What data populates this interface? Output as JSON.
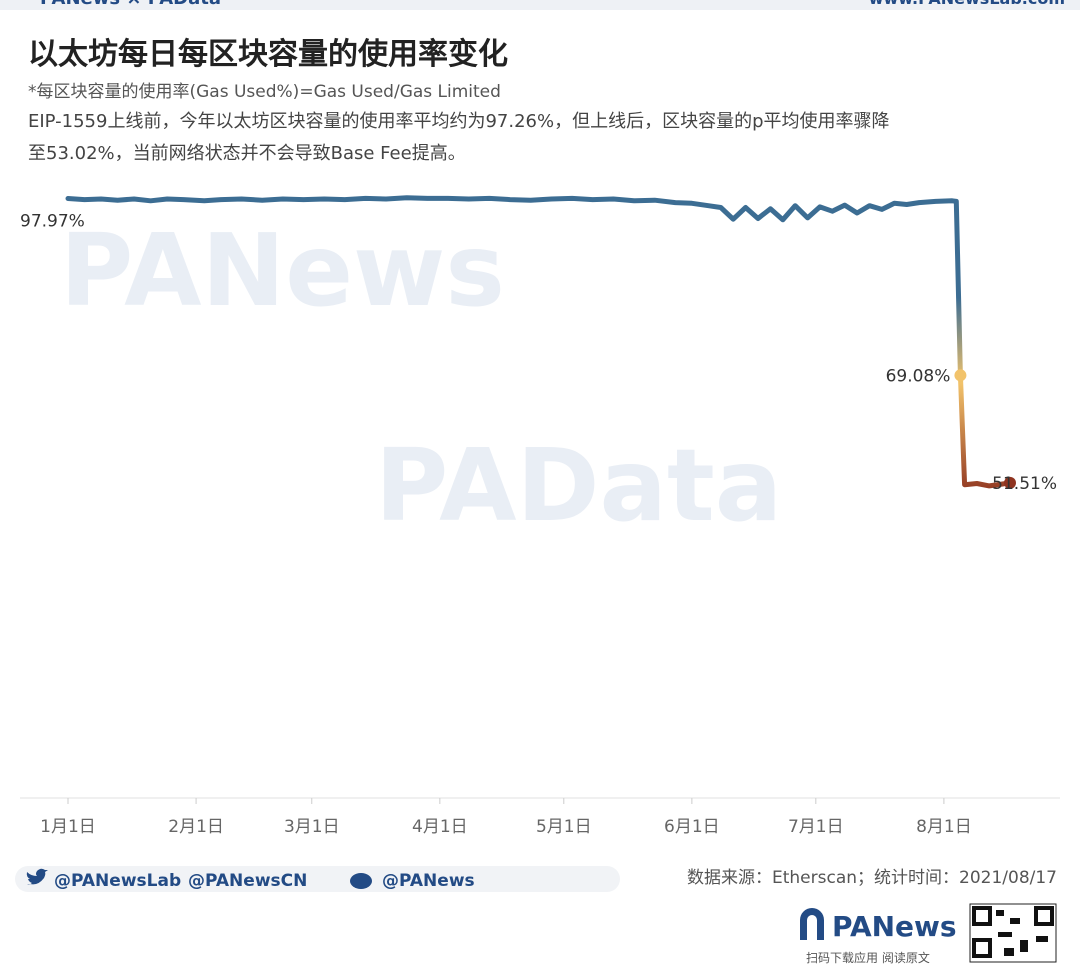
{
  "header": {
    "brand": "PANews × PAData",
    "site": "www.PANewsLab.com"
  },
  "chart_data": {
    "type": "line",
    "title": "以太坊每日每区块容量的使用率变化",
    "subtitle": "*每区块容量的使用率(Gas Used%)=Gas Used/Gas Limited",
    "description": [
      "EIP-1559上线前，今年以太坊区块容量的使用率平均约为97.26%，但上线后，区块容量的p平均使用率骤降",
      "至53.02%，当前网络状态并不会导致Base Fee提高。"
    ],
    "x": [
      "2021-01-01",
      "2021-01-05",
      "2021-01-09",
      "2021-01-13",
      "2021-01-17",
      "2021-01-21",
      "2021-01-25",
      "2021-01-29",
      "2021-02-03",
      "2021-02-07",
      "2021-02-12",
      "2021-02-17",
      "2021-02-22",
      "2021-02-27",
      "2021-03-04",
      "2021-03-09",
      "2021-03-14",
      "2021-03-19",
      "2021-03-24",
      "2021-03-29",
      "2021-04-03",
      "2021-04-08",
      "2021-04-13",
      "2021-04-18",
      "2021-04-23",
      "2021-04-28",
      "2021-05-03",
      "2021-05-08",
      "2021-05-13",
      "2021-05-18",
      "2021-05-23",
      "2021-05-28",
      "2021-06-01",
      "2021-06-05",
      "2021-06-08",
      "2021-06-11",
      "2021-06-14",
      "2021-06-17",
      "2021-06-20",
      "2021-06-23",
      "2021-06-26",
      "2021-06-29",
      "2021-07-02",
      "2021-07-05",
      "2021-07-08",
      "2021-07-11",
      "2021-07-14",
      "2021-07-17",
      "2021-07-20",
      "2021-07-23",
      "2021-07-26",
      "2021-07-30",
      "2021-08-03",
      "2021-08-04",
      "2021-08-05",
      "2021-08-06",
      "2021-08-09",
      "2021-08-12",
      "2021-08-15",
      "2021-08-17"
    ],
    "series": [
      {
        "color": "#3c6d93",
        "gradient": [
          "#3c6d93",
          "#f2c36b",
          "#8f3420"
        ],
        "values": [
          97.97,
          97.8,
          97.9,
          97.7,
          97.9,
          97.6,
          97.9,
          97.8,
          97.6,
          97.8,
          97.9,
          97.7,
          97.9,
          97.8,
          97.9,
          97.8,
          98.0,
          97.9,
          98.1,
          98.0,
          98.0,
          97.9,
          98.0,
          97.8,
          97.7,
          97.9,
          98.0,
          97.8,
          97.9,
          97.6,
          97.7,
          97.3,
          97.2,
          96.8,
          96.5,
          94.6,
          96.5,
          94.7,
          96.3,
          94.5,
          96.8,
          94.8,
          96.6,
          95.9,
          96.9,
          95.6,
          96.8,
          96.2,
          97.2,
          97.0,
          97.3,
          97.5,
          97.6,
          97.5,
          69.08,
          51.2,
          51.4,
          51.0,
          51.3,
          51.51
        ],
        "value_labels": [
          "97.97%",
          null,
          null,
          null,
          null,
          null,
          null,
          null,
          null,
          null,
          null,
          null,
          null,
          null,
          null,
          null,
          null,
          null,
          null,
          null,
          null,
          null,
          null,
          null,
          null,
          null,
          null,
          null,
          null,
          null,
          null,
          null,
          null,
          null,
          null,
          null,
          null,
          null,
          null,
          null,
          null,
          null,
          null,
          null,
          null,
          null,
          null,
          null,
          null,
          null,
          null,
          null,
          null,
          null,
          "69.08%",
          null,
          null,
          null,
          null,
          "51.51%"
        ]
      }
    ],
    "xlim": [
      "2021-01-01",
      "2021-08-17"
    ],
    "xticks": [
      {
        "value": "2021-01-01",
        "label": "1月1日"
      },
      {
        "value": "2021-02-01",
        "label": "2月1日"
      },
      {
        "value": "2021-03-01",
        "label": "3月1日"
      },
      {
        "value": "2021-04-01",
        "label": "4月1日"
      },
      {
        "value": "2021-05-01",
        "label": "5月1日"
      },
      {
        "value": "2021-06-01",
        "label": "6月1日"
      },
      {
        "value": "2021-07-01",
        "label": "7月1日"
      },
      {
        "value": "2021-08-01",
        "label": "8月1日"
      }
    ],
    "ylim": [
      0,
      101
    ],
    "watermarks": [
      "PANews",
      "PAData"
    ]
  },
  "footer": {
    "twitter": "@PANewsLab",
    "twitter_cn": "@PANewsCN",
    "weibo": "@PANews",
    "source": "数据来源：Etherscan；统计时间：2021/08/17",
    "logo": "PANews",
    "qr_caption": "扫码下载应用 阅读原文"
  }
}
